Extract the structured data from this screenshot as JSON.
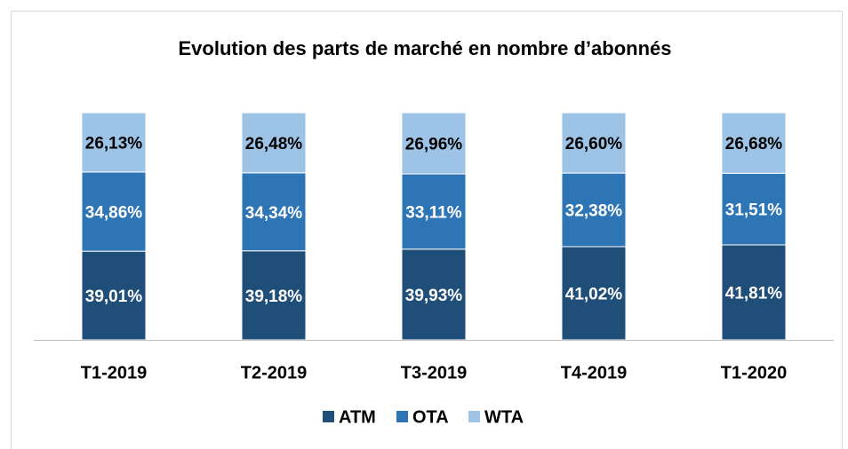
{
  "chart_data": {
    "type": "stacked_bar",
    "title": "Evolution des parts de marché en nombre d’abonnés",
    "categories": [
      "T1-2019",
      "T2-2019",
      "T3-2019",
      "T4-2019",
      "T1-2020"
    ],
    "ylim": [
      0,
      100
    ],
    "series": [
      {
        "name": "ATM",
        "color": "#1f4e79",
        "values": [
          39.01,
          39.18,
          39.93,
          41.02,
          41.81
        ],
        "value_labels": [
          "39,01%",
          "39,18%",
          "39,93%",
          "41,02%",
          "41,81%"
        ]
      },
      {
        "name": "OTA",
        "color": "#2e75b6",
        "values": [
          34.86,
          34.34,
          33.11,
          32.38,
          31.51
        ],
        "value_labels": [
          "34,86%",
          "34,34%",
          "33,11%",
          "32,38%",
          "31,51%"
        ]
      },
      {
        "name": "WTA",
        "color": "#9dc3e6",
        "values": [
          26.13,
          26.48,
          26.96,
          26.6,
          26.68
        ],
        "value_labels": [
          "26,13%",
          "26,48%",
          "26,96%",
          "26,60%",
          "26,68%"
        ]
      }
    ]
  }
}
